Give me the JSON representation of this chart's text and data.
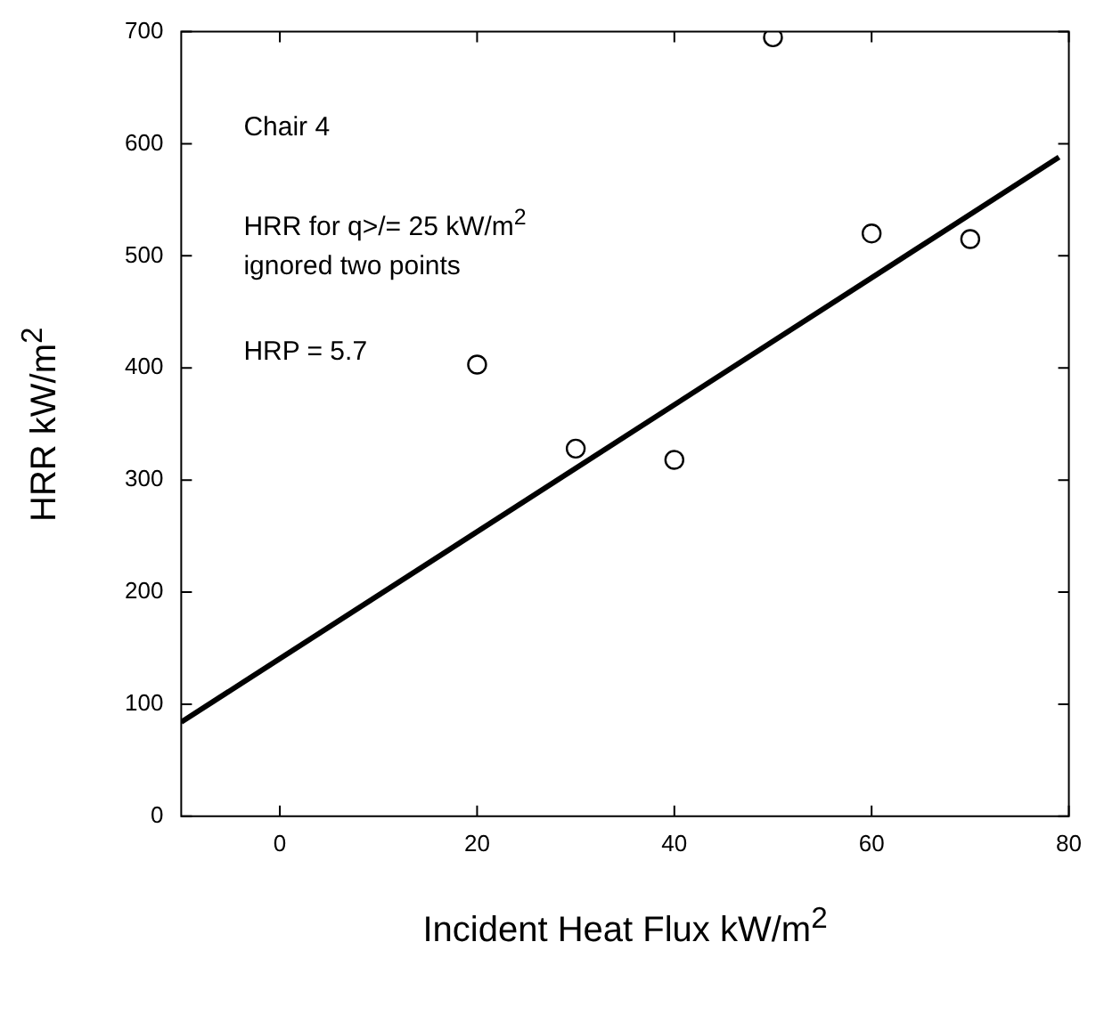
{
  "chart_data": {
    "type": "scatter",
    "xlabel": "Incident Heat Flux kW/m$^{2}$",
    "ylabel": "HRR kW/m$^{2}$",
    "annotations": [
      "Chair 4",
      "HRR for q>/= 25 kW/m$^{2}$",
      "ignored two points",
      "HRP = 5.7"
    ],
    "xlim": [
      -10,
      80
    ],
    "xticks": [
      0,
      20,
      40,
      60,
      80
    ],
    "ylim": [
      0,
      700
    ],
    "yticks": [
      0,
      100,
      200,
      300,
      400,
      500,
      600,
      700
    ],
    "grid": false,
    "legend": false,
    "marker": "circle",
    "series": [
      {
        "color": "#000000",
        "x": [
          20,
          30,
          40,
          50,
          60,
          70
        ],
        "values": [
          403,
          328,
          318,
          695,
          520,
          515
        ]
      },
      {
        "type": "line",
        "color": "#000000",
        "x": [
          -10,
          79
        ],
        "values": [
          84,
          588
        ],
        "marker": "none",
        "line_style": "solid"
      }
    ]
  }
}
